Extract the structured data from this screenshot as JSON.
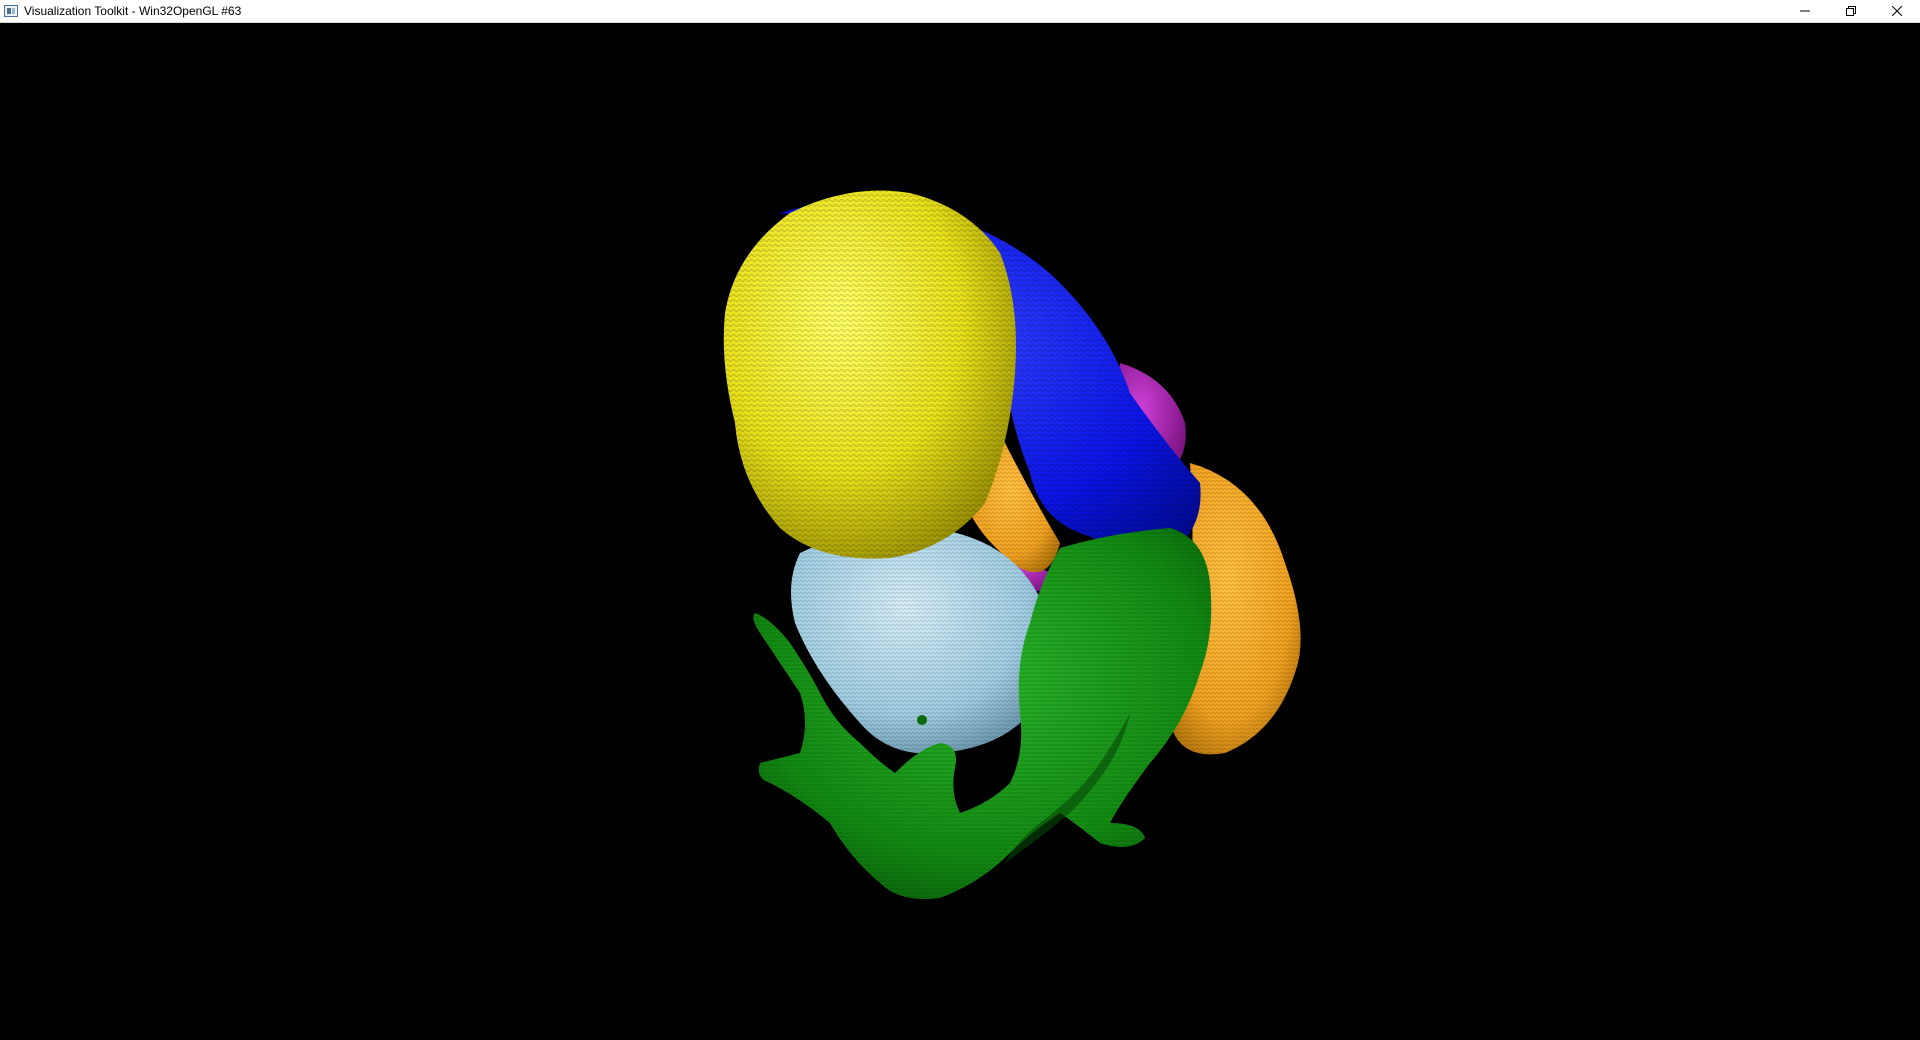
{
  "window": {
    "title": "Visualization Toolkit - Win32OpenGL #63",
    "app_icon": "vtk-window-icon",
    "controls": {
      "minimize_icon": "minimize-icon",
      "restore_icon": "restore-icon",
      "close_icon": "close-icon"
    }
  },
  "render": {
    "background": "#000000",
    "structures": [
      {
        "name": "yellow-structure",
        "color": "#e8e01a"
      },
      {
        "name": "blue-structure",
        "color": "#0a14e6"
      },
      {
        "name": "magenta-structure",
        "color": "#b01ab8"
      },
      {
        "name": "orange-structure",
        "color": "#f0a020"
      },
      {
        "name": "light-blue-structure",
        "color": "#9ecbe0"
      },
      {
        "name": "green-structure",
        "color": "#128a12"
      }
    ]
  }
}
